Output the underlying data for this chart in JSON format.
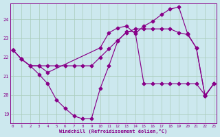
{
  "bg_color": "#cce8ee",
  "line_color": "#880088",
  "grid_color": "#aaccbb",
  "xlim": [
    -0.3,
    23.3
  ],
  "ylim": [
    18.5,
    24.85
  ],
  "xticks": [
    0,
    1,
    2,
    3,
    4,
    5,
    6,
    7,
    8,
    9,
    10,
    11,
    12,
    13,
    14,
    15,
    16,
    17,
    18,
    19,
    20,
    21,
    22,
    23
  ],
  "yticks": [
    19,
    20,
    21,
    22,
    23,
    24
  ],
  "xlabel": "Windchill (Refroidissement éolien,°C)",
  "curve1_x": [
    0,
    1,
    2,
    3,
    4,
    5,
    6,
    7,
    8,
    9,
    10,
    11,
    12,
    13,
    14,
    15,
    16,
    17,
    18,
    19,
    20,
    21,
    22,
    23
  ],
  "curve1_y": [
    22.4,
    21.9,
    21.55,
    21.55,
    21.55,
    21.55,
    21.55,
    21.55,
    21.55,
    21.55,
    22.0,
    22.45,
    22.9,
    23.3,
    23.5,
    23.5,
    23.5,
    23.5,
    23.5,
    23.3,
    23.2,
    22.5,
    19.95,
    20.6
  ],
  "curve2_x": [
    0,
    1,
    2,
    3,
    4,
    10,
    11,
    12,
    13,
    14,
    15,
    16,
    17,
    18,
    19,
    20,
    21,
    22,
    23
  ],
  "curve2_y": [
    22.4,
    21.9,
    21.55,
    21.55,
    21.2,
    22.5,
    23.3,
    23.55,
    23.65,
    23.25,
    23.65,
    23.9,
    24.25,
    24.55,
    24.65,
    23.25,
    22.5,
    19.95,
    20.6
  ],
  "curve3_x": [
    0,
    1,
    2,
    3,
    4,
    5,
    6,
    7,
    8,
    9,
    10,
    11,
    12,
    13,
    14,
    15,
    16,
    17,
    18,
    19,
    20,
    21,
    22,
    23
  ],
  "curve3_y": [
    22.4,
    21.9,
    21.55,
    21.1,
    20.6,
    19.75,
    19.3,
    18.9,
    18.75,
    18.75,
    20.35,
    21.55,
    22.85,
    23.35,
    23.35,
    20.6,
    20.6,
    20.6,
    20.6,
    20.6,
    20.6,
    20.6,
    20.0,
    20.6
  ]
}
